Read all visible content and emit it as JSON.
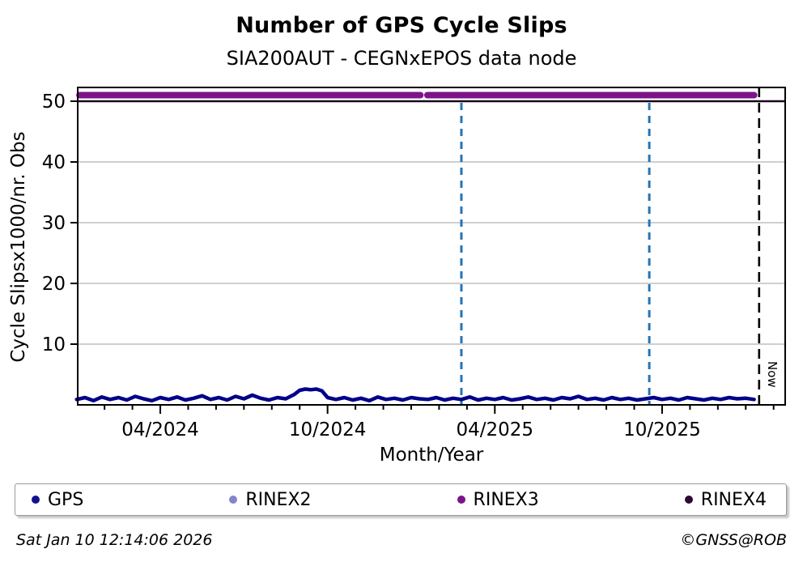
{
  "header": {
    "title": "Number of GPS Cycle Slips",
    "subtitle": "SIA200AUT - CEGNxEPOS data node"
  },
  "footer": {
    "timestamp": "Sat Jan 10 12:14:06 2026",
    "credit": "©GNSS@ROB"
  },
  "legend": {
    "items": [
      {
        "label": "GPS",
        "color": "#10108f"
      },
      {
        "label": "RINEX2",
        "color": "#8286c8"
      },
      {
        "label": "RINEX3",
        "color": "#7c1488"
      },
      {
        "label": "RINEX4",
        "color": "#2d0a31"
      }
    ]
  },
  "chart_data": {
    "type": "line",
    "title": "Number of GPS Cycle Slips",
    "subtitle": "SIA200AUT - CEGNxEPOS data node",
    "xlabel": "Month/Year",
    "ylabel": "Cycle Slipsx1000/nr. Obs",
    "x_unit_note": "m = months since 2024-01-01",
    "xlim_months": [
      0.04,
      25.4
    ],
    "ylim": [
      0,
      52.3
    ],
    "yticks": [
      10,
      20,
      30,
      40,
      50
    ],
    "xticks_major": [
      {
        "m": 3,
        "label": "04/2024"
      },
      {
        "m": 9,
        "label": "10/2024"
      },
      {
        "m": 15,
        "label": "04/2025"
      },
      {
        "m": 21,
        "label": "10/2025"
      }
    ],
    "minor_tick_every_months": 1,
    "grid": {
      "horizontal": true,
      "color": "#b2b2b2"
    },
    "series": [
      {
        "name": "GPS",
        "style": "noisy-line",
        "color": "#00008b",
        "points": [
          [
            0,
            0.9
          ],
          [
            0.3,
            1.2
          ],
          [
            0.6,
            0.7
          ],
          [
            0.9,
            1.3
          ],
          [
            1.2,
            0.9
          ],
          [
            1.5,
            1.2
          ],
          [
            1.8,
            0.8
          ],
          [
            2.1,
            1.4
          ],
          [
            2.4,
            1.0
          ],
          [
            2.7,
            0.7
          ],
          [
            3,
            1.2
          ],
          [
            3.3,
            0.9
          ],
          [
            3.6,
            1.3
          ],
          [
            3.9,
            0.8
          ],
          [
            4.2,
            1.1
          ],
          [
            4.5,
            1.5
          ],
          [
            4.8,
            0.9
          ],
          [
            5.1,
            1.2
          ],
          [
            5.4,
            0.8
          ],
          [
            5.7,
            1.4
          ],
          [
            6,
            1.0
          ],
          [
            6.3,
            1.6
          ],
          [
            6.6,
            1.1
          ],
          [
            6.9,
            0.8
          ],
          [
            7.2,
            1.2
          ],
          [
            7.5,
            1.0
          ],
          [
            7.8,
            1.7
          ],
          [
            8,
            2.4
          ],
          [
            8.2,
            2.6
          ],
          [
            8.4,
            2.5
          ],
          [
            8.6,
            2.6
          ],
          [
            8.8,
            2.3
          ],
          [
            9,
            1.2
          ],
          [
            9.3,
            0.9
          ],
          [
            9.6,
            1.2
          ],
          [
            9.9,
            0.8
          ],
          [
            10.2,
            1.1
          ],
          [
            10.5,
            0.7
          ],
          [
            10.8,
            1.3
          ],
          [
            11.1,
            0.9
          ],
          [
            11.4,
            1.1
          ],
          [
            11.7,
            0.8
          ],
          [
            12,
            1.2
          ],
          [
            12.3,
            1.0
          ],
          [
            12.6,
            0.9
          ],
          [
            12.9,
            1.2
          ],
          [
            13.2,
            0.8
          ],
          [
            13.5,
            1.1
          ],
          [
            13.8,
            0.9
          ],
          [
            14.1,
            1.3
          ],
          [
            14.4,
            0.8
          ],
          [
            14.7,
            1.1
          ],
          [
            15,
            0.9
          ],
          [
            15.3,
            1.2
          ],
          [
            15.6,
            0.8
          ],
          [
            15.9,
            1.0
          ],
          [
            16.2,
            1.3
          ],
          [
            16.5,
            0.9
          ],
          [
            16.8,
            1.1
          ],
          [
            17.1,
            0.8
          ],
          [
            17.4,
            1.2
          ],
          [
            17.7,
            1.0
          ],
          [
            18,
            1.4
          ],
          [
            18.3,
            0.9
          ],
          [
            18.6,
            1.1
          ],
          [
            18.9,
            0.8
          ],
          [
            19.2,
            1.2
          ],
          [
            19.5,
            0.9
          ],
          [
            19.8,
            1.1
          ],
          [
            20.1,
            0.8
          ],
          [
            20.4,
            1.0
          ],
          [
            20.7,
            1.2
          ],
          [
            21,
            0.9
          ],
          [
            21.3,
            1.1
          ],
          [
            21.6,
            0.8
          ],
          [
            21.9,
            1.2
          ],
          [
            22.2,
            1.0
          ],
          [
            22.5,
            0.8
          ],
          [
            22.8,
            1.1
          ],
          [
            23.1,
            0.9
          ],
          [
            23.4,
            1.2
          ],
          [
            23.7,
            1.0
          ],
          [
            24,
            1.1
          ],
          [
            24.3,
            0.9
          ]
        ]
      },
      {
        "name": "RINEX2",
        "style": "availability-bar",
        "color": "#8286c8",
        "value": null,
        "segments": []
      },
      {
        "name": "RINEX3",
        "style": "availability-bar",
        "color": "#7c1488",
        "value": 51,
        "segments": [
          [
            0.1,
            12.33
          ],
          [
            12.58,
            24.3
          ]
        ]
      },
      {
        "name": "RINEX4",
        "style": "availability-bar",
        "color": "#16051a",
        "value": 50,
        "segments": [
          [
            0.04,
            25.4
          ]
        ]
      }
    ],
    "event_lines": [
      {
        "m": 13.8,
        "color": "#2474b5",
        "style": "dashed"
      },
      {
        "m": 20.54,
        "color": "#2474b5",
        "style": "dashed"
      }
    ],
    "now_line": {
      "m": 24.48,
      "label": "Now",
      "color": "#000000",
      "style": "dashed"
    },
    "legend_position": "bottom"
  }
}
